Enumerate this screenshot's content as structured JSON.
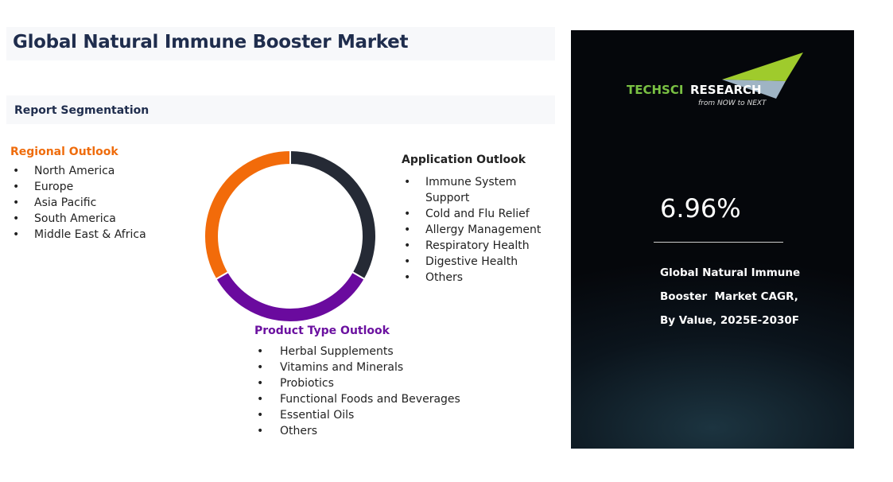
{
  "header": {
    "title": "Global Natural Immune Booster Market",
    "section": "Report Segmentation"
  },
  "regional": {
    "title": "Regional Outlook",
    "items": [
      "North America",
      "Europe",
      "Asia Pacific",
      "South America",
      "Middle East & Africa"
    ]
  },
  "application": {
    "title": "Application Outlook",
    "items": [
      "Immune System Support",
      "Cold and Flu Relief",
      "Allergy Management",
      "Respiratory Health",
      "Digestive Health",
      "Others"
    ]
  },
  "product": {
    "title": "Product Type Outlook",
    "items": [
      "Herbal Supplements",
      "Vitamins and Minerals",
      "Probiotics",
      "Functional Foods and Beverages",
      "Essential Oils",
      "Others"
    ]
  },
  "donut": {
    "segments": [
      {
        "segment": "Application Outlook",
        "color": "#252a35",
        "share": 0.3333
      },
      {
        "segment": "Product Type Outlook",
        "color": "#6a0a9e",
        "share": 0.3333
      },
      {
        "segment": "Regional Outlook",
        "color": "#f26b0a",
        "share": 0.3334
      }
    ]
  },
  "panel": {
    "logo": {
      "brand_left": "TechSci",
      "brand_right": "Research",
      "tagline": "from NOW to NEXT"
    },
    "cagr_value": "6.96%",
    "description": "Global Natural Immune\nBooster  Market CAGR,\nBy Value, 2025E-2030F"
  }
}
